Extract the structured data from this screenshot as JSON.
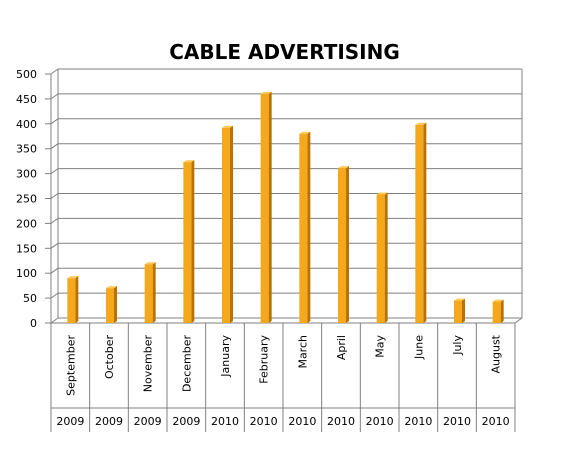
{
  "chart_data": {
    "type": "bar",
    "title": "CABLE ADVERTISING",
    "categories": [
      "September",
      "October",
      "November",
      "December",
      "January",
      "February",
      "March",
      "April",
      "May",
      "June",
      "July",
      "August"
    ],
    "years": [
      "2009",
      "2009",
      "2009",
      "2009",
      "2010",
      "2010",
      "2010",
      "2010",
      "2010",
      "2010",
      "2010",
      "2010"
    ],
    "values": [
      90,
      70,
      118,
      323,
      392,
      460,
      380,
      311,
      258,
      398,
      45,
      43
    ],
    "ylim": [
      0,
      500
    ],
    "yticks": [
      0,
      50,
      100,
      150,
      200,
      250,
      300,
      350,
      400,
      450,
      500
    ],
    "grid": true,
    "legend": "none",
    "xlabel": "",
    "ylabel": ""
  },
  "colors": {
    "bar_front": "#f5a81c",
    "bar_side": "#b87200",
    "bar_top": "#ffc95a",
    "grid": "#808080"
  }
}
